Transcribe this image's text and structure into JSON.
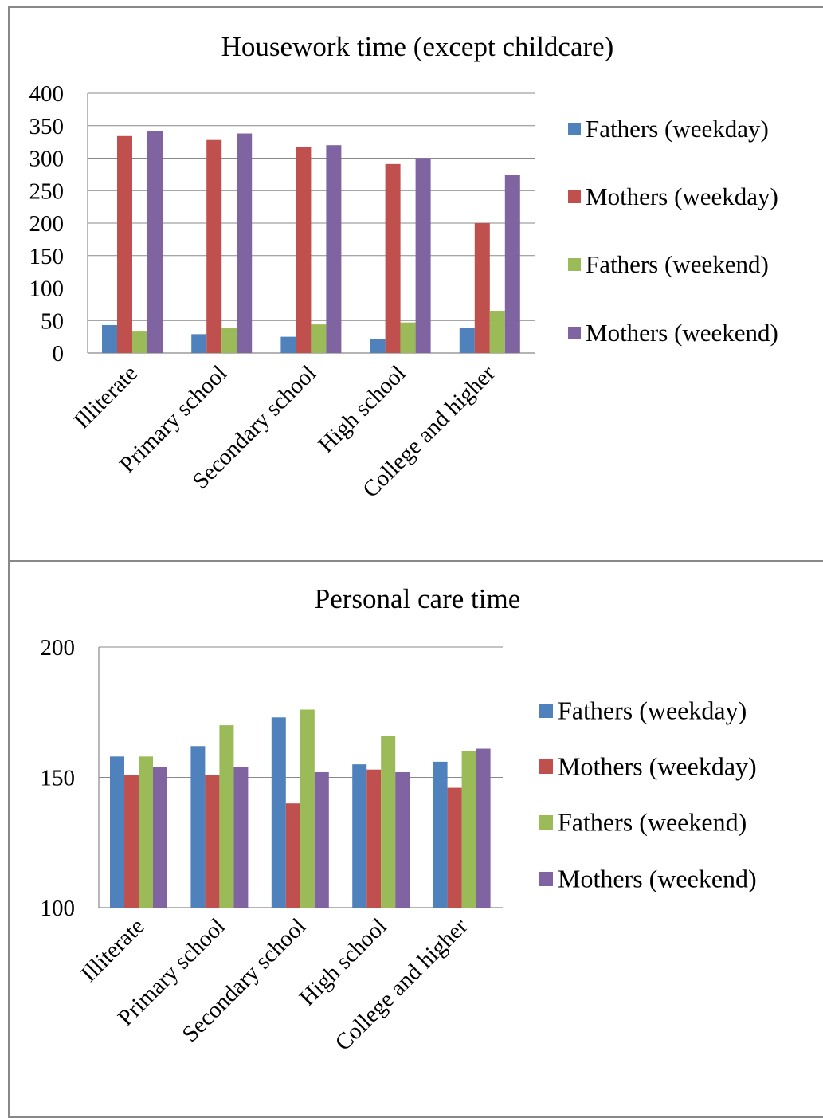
{
  "charts": [
    {
      "type": "bar",
      "title": "Housework time (except childcare)",
      "categories": [
        "Illiterate",
        "Primary school",
        "Secondary school",
        "High school",
        "College and higher"
      ],
      "series": [
        {
          "name": "Fathers (weekday)",
          "color": "#4f81bd",
          "values": [
            43,
            29,
            25,
            21,
            39
          ]
        },
        {
          "name": "Mothers (weekday)",
          "color": "#c0504d",
          "values": [
            334,
            328,
            317,
            291,
            200
          ]
        },
        {
          "name": "Fathers (weekend)",
          "color": "#9bbb59",
          "values": [
            33,
            38,
            44,
            47,
            65
          ]
        },
        {
          "name": "Mothers (weekend)",
          "color": "#8064a2",
          "values": [
            342,
            338,
            320,
            300,
            274
          ]
        }
      ],
      "yticks": [
        0,
        50,
        100,
        150,
        200,
        250,
        300,
        350,
        400
      ],
      "ylim": [
        0,
        400
      ],
      "grid": true,
      "legend": "right"
    },
    {
      "type": "bar",
      "title": "Personal care time",
      "categories": [
        "Illiterate",
        "Primary school",
        "Secondary school",
        "High school",
        "College and higher"
      ],
      "series": [
        {
          "name": "Fathers (weekday)",
          "color": "#4f81bd",
          "values": [
            158,
            162,
            173,
            155,
            156
          ]
        },
        {
          "name": "Mothers (weekday)",
          "color": "#c0504d",
          "values": [
            151,
            151,
            140,
            153,
            146
          ]
        },
        {
          "name": "Fathers (weekend)",
          "color": "#9bbb59",
          "values": [
            158,
            170,
            176,
            166,
            160
          ]
        },
        {
          "name": "Mothers (weekend)",
          "color": "#8064a2",
          "values": [
            154,
            154,
            152,
            152,
            161
          ]
        }
      ],
      "yticks": [
        100,
        150,
        200
      ],
      "ylim": [
        100,
        200
      ],
      "grid": true,
      "legend": "right"
    }
  ]
}
